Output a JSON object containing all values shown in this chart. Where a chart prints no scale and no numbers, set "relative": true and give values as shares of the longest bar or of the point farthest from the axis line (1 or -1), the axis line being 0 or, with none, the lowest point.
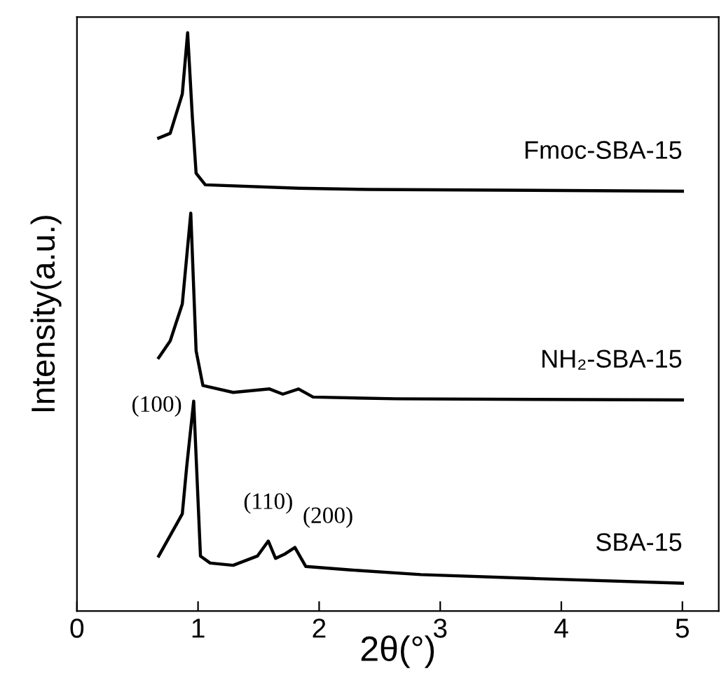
{
  "chart_data": {
    "type": "line",
    "relative": true,
    "xlabel": "2θ(°)",
    "ylabel": "Intensity(a.u.)",
    "xlim": [
      0,
      5.3
    ],
    "xticks": [
      0,
      1,
      2,
      3,
      4,
      5
    ],
    "tick_labels": "x",
    "grid": false,
    "legend": false,
    "marker": "none",
    "line_style": "solid",
    "series": [
      {
        "name": "Fmoc-SBA-15",
        "color": "#000000",
        "x": [
          0.675,
          0.77,
          0.87,
          0.914,
          0.953,
          0.984,
          1.06,
          1.83,
          2.41,
          5.0
        ],
        "values": [
          0.818,
          0.826,
          0.894,
          1.0,
          0.854,
          0.757,
          0.737,
          0.731,
          0.729,
          0.726
        ]
      },
      {
        "name": "NH₂-SBA-15",
        "color": "#000000",
        "x": [
          0.675,
          0.77,
          0.87,
          0.906,
          0.94,
          0.984,
          1.04,
          1.29,
          1.59,
          1.7,
          1.83,
          1.95,
          2.64,
          5.0
        ],
        "values": [
          0.438,
          0.467,
          0.531,
          0.612,
          0.688,
          0.45,
          0.39,
          0.378,
          0.384,
          0.375,
          0.384,
          0.37,
          0.367,
          0.365
        ]
      },
      {
        "name": "SBA-15",
        "color": "#000000",
        "x": [
          0.675,
          0.87,
          0.906,
          0.964,
          1.02,
          1.1,
          1.29,
          1.49,
          1.58,
          1.64,
          1.72,
          1.8,
          1.89,
          2.26,
          2.84,
          3.8,
          5.0
        ],
        "values": [
          0.095,
          0.168,
          0.249,
          0.363,
          0.095,
          0.083,
          0.079,
          0.095,
          0.121,
          0.091,
          0.099,
          0.11,
          0.077,
          0.071,
          0.063,
          0.056,
          0.048
        ]
      }
    ],
    "annotations": [
      {
        "text": "(100)",
        "x": 0.964,
        "y": 0.363
      },
      {
        "text": "(110)",
        "x": 1.58,
        "y": 0.121
      },
      {
        "text": "(200)",
        "x": 1.8,
        "y": 0.11
      }
    ]
  }
}
